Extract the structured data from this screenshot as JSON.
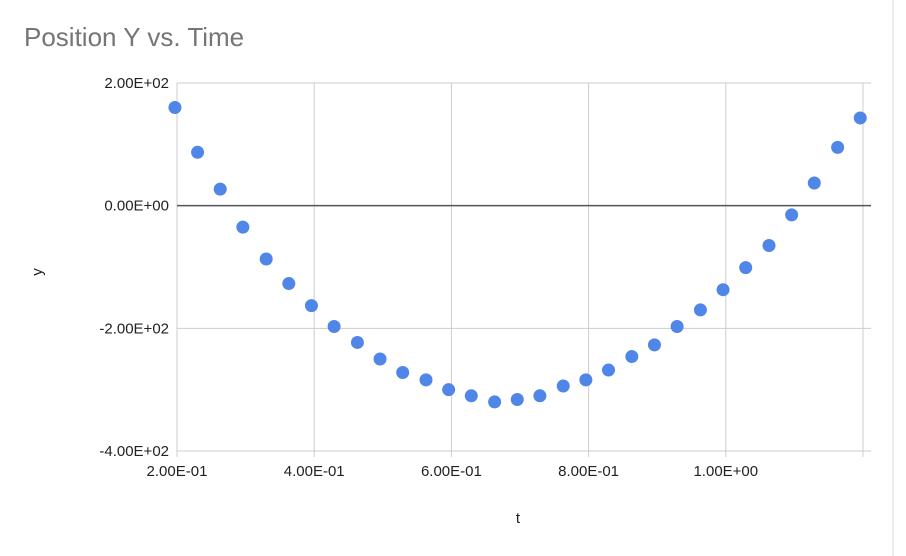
{
  "chart_data": {
    "type": "scatter",
    "title": "Position Y vs. Time",
    "xlabel": "t",
    "ylabel": "y",
    "xlim": [
      0.2,
      1.2
    ],
    "ylim": [
      -400,
      200
    ],
    "x_ticks": [
      {
        "value": 0.2,
        "label": "2.00E-01"
      },
      {
        "value": 0.4,
        "label": "4.00E-01"
      },
      {
        "value": 0.6,
        "label": "6.00E-01"
      },
      {
        "value": 0.8,
        "label": "8.00E-01"
      },
      {
        "value": 1.0,
        "label": "1.00E+00"
      }
    ],
    "x_grid": [
      0.2,
      0.4,
      0.6,
      0.8,
      1.0,
      1.2
    ],
    "y_ticks": [
      {
        "value": 200,
        "label": "2.00E+02"
      },
      {
        "value": 0,
        "label": "0.00E+00"
      },
      {
        "value": -200,
        "label": "-2.00E+02"
      },
      {
        "value": -400,
        "label": "-4.00E+02"
      }
    ],
    "zero_line": 0,
    "grid": true,
    "legend": "none",
    "marker_color": "#4f86e8",
    "points": [
      {
        "x": 0.197,
        "y": 160
      },
      {
        "x": 0.23,
        "y": 87
      },
      {
        "x": 0.263,
        "y": 27
      },
      {
        "x": 0.296,
        "y": -35
      },
      {
        "x": 0.33,
        "y": -87
      },
      {
        "x": 0.363,
        "y": -127
      },
      {
        "x": 0.396,
        "y": -163
      },
      {
        "x": 0.429,
        "y": -197
      },
      {
        "x": 0.463,
        "y": -223
      },
      {
        "x": 0.496,
        "y": -250
      },
      {
        "x": 0.529,
        "y": -272
      },
      {
        "x": 0.563,
        "y": -284
      },
      {
        "x": 0.596,
        "y": -300
      },
      {
        "x": 0.629,
        "y": -310
      },
      {
        "x": 0.663,
        "y": -320
      },
      {
        "x": 0.696,
        "y": -316
      },
      {
        "x": 0.729,
        "y": -310
      },
      {
        "x": 0.763,
        "y": -294
      },
      {
        "x": 0.796,
        "y": -284
      },
      {
        "x": 0.829,
        "y": -268
      },
      {
        "x": 0.863,
        "y": -246
      },
      {
        "x": 0.896,
        "y": -227
      },
      {
        "x": 0.929,
        "y": -197
      },
      {
        "x": 0.963,
        "y": -170
      },
      {
        "x": 0.996,
        "y": -137
      },
      {
        "x": 1.029,
        "y": -101
      },
      {
        "x": 1.063,
        "y": -65
      },
      {
        "x": 1.096,
        "y": -15
      },
      {
        "x": 1.129,
        "y": 37
      },
      {
        "x": 1.163,
        "y": 95
      },
      {
        "x": 1.196,
        "y": 143
      }
    ]
  }
}
